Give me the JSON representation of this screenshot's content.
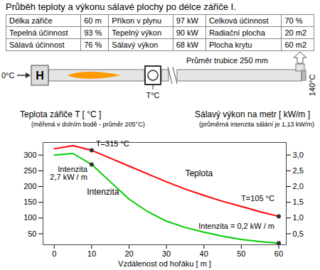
{
  "chart_data": {
    "type": "line",
    "title": "Průběh teploty a výkonu sálavé plochy po délce zářiče I.",
    "y_label": "Teplota zářiče T [ °C ]",
    "y_sublabel": "(měřená v dolním bodě - průměr 205°C)",
    "y2_label": "Sálavý výkon na metr [ kW/m ]",
    "y2_sublabel": "(průměrná intenzita sálání je 1,13 kW/m)",
    "x_label": "Vzdálenost od hořáku [ m ]",
    "x": [
      0,
      5,
      10,
      15,
      20,
      25,
      30,
      35,
      40,
      45,
      50,
      55,
      60
    ],
    "series": [
      {
        "name": "Teplota",
        "color": "#ff0000",
        "values": [
          320,
          330,
          315,
          290,
          265,
          240,
          215,
          192,
          172,
          153,
          137,
          120,
          105
        ]
      },
      {
        "name": "Intenzita",
        "color": "#00cc00",
        "axis": "y2",
        "values": [
          3.0,
          3.05,
          2.7,
          2.15,
          1.6,
          1.2,
          0.9,
          0.7,
          0.55,
          0.42,
          0.32,
          0.25,
          0.2
        ]
      }
    ],
    "xlim": [
      -3,
      62
    ],
    "xticks": [
      0,
      10,
      20,
      30,
      40,
      50,
      60
    ],
    "ylim": [
      15,
      340
    ],
    "yticks": [
      50,
      100,
      150,
      200,
      250,
      300
    ],
    "y2lim": [
      0.15,
      3.4
    ],
    "y2ticks": [
      {
        "value": 0.5,
        "label": "0,5"
      },
      {
        "value": 1,
        "label": "1,0"
      },
      {
        "value": 1.5,
        "label": "1,5"
      },
      {
        "value": 2,
        "label": "2,0"
      },
      {
        "value": 2.5,
        "label": "2,5"
      },
      {
        "value": 3,
        "label": "3,0"
      }
    ],
    "annotations": [
      {
        "text": "T=315 °C",
        "x": 10,
        "y": 315
      },
      {
        "text": "Intenzita\n2,7 kW / m",
        "x": 10,
        "y": 2.7,
        "axis": "y2"
      },
      {
        "text": "T=105 °C",
        "x": 60,
        "y": 105
      },
      {
        "text": "Intenzita = 0,2 kW / m",
        "x": 60,
        "y": 0.2,
        "axis": "y2"
      }
    ]
  },
  "table": {
    "rows": [
      [
        "Délka zářiče",
        "60 m",
        "Příkon v plynu",
        "97 kW",
        "Celková účinnost",
        "70 %"
      ],
      [
        "Tepelná účinnost",
        "93 %",
        "Tepelný výkon",
        "90 kW",
        "Radiační plocha",
        "20 m2"
      ],
      [
        "Sálavá účinnost",
        "76 %",
        "Sálavý výkon",
        "68 kW",
        "Plocha krytu",
        "60 m2"
      ]
    ]
  },
  "diagram": {
    "inlet_label": "0°C",
    "burner_label": "H",
    "tube_label": "Průměr trubice 250 mm",
    "sensor_label": "T°C",
    "exhaust_label": "140°C"
  }
}
